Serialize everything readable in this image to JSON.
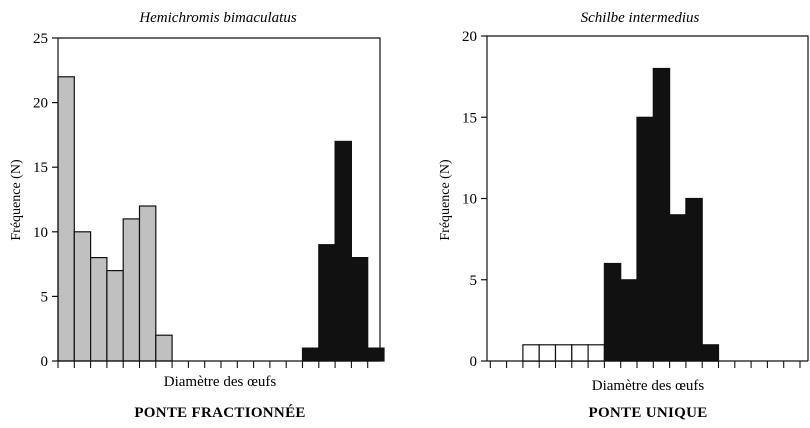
{
  "chart_data": [
    {
      "type": "bar",
      "title": "Hemichromis bimaculatus",
      "subtitle": "PONTE FRACTIONNÉE",
      "xlabel": "Diamètre des œufs",
      "ylabel": "Fréquence (N)",
      "ylim": [
        0,
        25
      ],
      "yticks": [
        "0",
        "5",
        "10",
        "15",
        "20",
        "25"
      ],
      "bin_count": 20,
      "series": [
        {
          "color": "#c0c0c0",
          "values": [
            22,
            10,
            8,
            7,
            11,
            12,
            2,
            0,
            0,
            0,
            0,
            0,
            0,
            0,
            0,
            0,
            0,
            0,
            0,
            0
          ]
        },
        {
          "color": "#111111",
          "values": [
            0,
            0,
            0,
            0,
            0,
            0,
            0,
            0,
            0,
            0,
            0,
            0,
            0,
            0,
            0,
            1,
            9,
            17,
            8,
            1
          ]
        }
      ]
    },
    {
      "type": "bar",
      "title": "Schilbe intermedius",
      "subtitle": "PONTE UNIQUE",
      "xlabel": "Diamètre des œufs",
      "ylabel": "Fréquence (N)",
      "ylim": [
        0,
        20
      ],
      "yticks": [
        "0",
        "5",
        "10",
        "15",
        "20"
      ],
      "bin_count": 20,
      "series": [
        {
          "color": "#ffffff",
          "values": [
            0,
            0,
            0,
            1,
            1,
            1,
            1,
            1,
            0,
            0,
            0,
            0,
            0,
            0,
            0,
            0,
            0,
            0,
            0,
            0
          ]
        },
        {
          "color": "#111111",
          "values": [
            0,
            0,
            0,
            0,
            0,
            0,
            0,
            0,
            6,
            5,
            15,
            18,
            9,
            10,
            1,
            0,
            0,
            0,
            0,
            0
          ]
        }
      ]
    }
  ]
}
